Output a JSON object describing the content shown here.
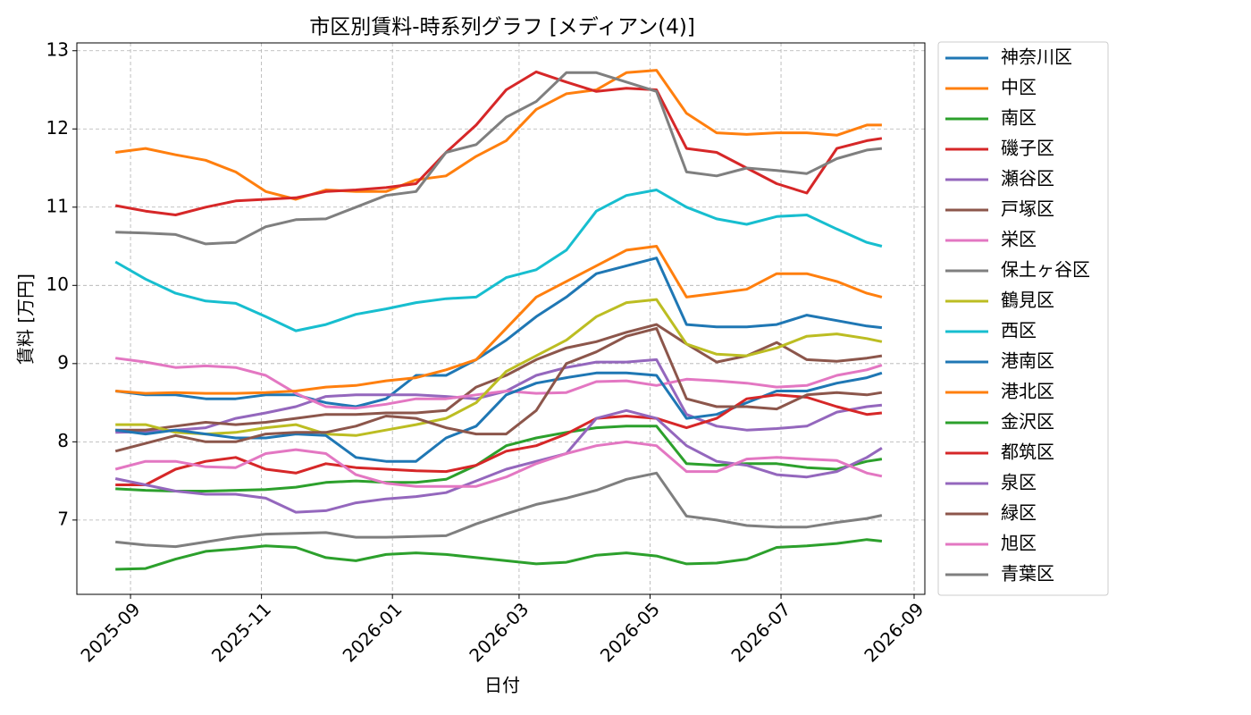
{
  "chart_data": {
    "type": "line",
    "title": "市区別賃料-時系列グラフ [メディアン(4)]",
    "x_label": "日付",
    "y_label": "賃料 [万円]",
    "x": [
      "2025-08-25",
      "2025-09-08",
      "2025-09-22",
      "2025-10-06",
      "2025-10-20",
      "2025-11-03",
      "2025-11-17",
      "2025-12-01",
      "2025-12-15",
      "2025-12-29",
      "2026-01-12",
      "2026-01-26",
      "2026-02-09",
      "2026-02-23",
      "2026-03-09",
      "2026-03-23",
      "2026-04-06",
      "2026-04-20",
      "2026-05-04",
      "2026-05-18",
      "2026-06-01",
      "2026-06-15",
      "2026-06-29",
      "2026-07-13",
      "2026-07-27",
      "2026-08-10",
      "2026-08-17"
    ],
    "xlim": [
      "2025-08-07",
      "2026-09-06"
    ],
    "xticks": [
      {
        "value": "2025-09-01",
        "label": "2025-09"
      },
      {
        "value": "2025-11-01",
        "label": "2025-11"
      },
      {
        "value": "2026-01-01",
        "label": "2026-01"
      },
      {
        "value": "2026-03-01",
        "label": "2026-03"
      },
      {
        "value": "2026-05-01",
        "label": "2026-05"
      },
      {
        "value": "2026-07-01",
        "label": "2026-07"
      },
      {
        "value": "2026-09-01",
        "label": "2026-09"
      }
    ],
    "ylim": [
      6.05,
      13.1
    ],
    "yticks": [
      7,
      8,
      9,
      10,
      11,
      12,
      13
    ],
    "grid": true,
    "legend": "outside right",
    "series": [
      {
        "name": "神奈川区",
        "color": "#1f77b4",
        "values": [
          8.65,
          8.6,
          8.6,
          8.55,
          8.55,
          8.6,
          8.6,
          8.5,
          8.45,
          8.55,
          8.85,
          8.85,
          9.05,
          9.3,
          9.6,
          9.85,
          10.15,
          10.25,
          10.35,
          9.5,
          9.47,
          9.47,
          9.5,
          9.62,
          9.55,
          9.48,
          9.46
        ]
      },
      {
        "name": "中区",
        "color": "#ff7f0e",
        "values": [
          11.7,
          11.75,
          11.67,
          11.6,
          11.45,
          11.2,
          11.1,
          11.22,
          11.2,
          11.2,
          11.35,
          11.4,
          11.65,
          11.85,
          12.25,
          12.45,
          12.5,
          12.72,
          12.75,
          12.2,
          11.95,
          11.93,
          11.95,
          11.95,
          11.92,
          12.05,
          12.05
        ]
      },
      {
        "name": "南区",
        "color": "#2ca02c",
        "values": [
          6.37,
          6.38,
          6.5,
          6.6,
          6.63,
          6.67,
          6.65,
          6.52,
          6.48,
          6.56,
          6.58,
          6.56,
          6.52,
          6.48,
          6.44,
          6.46,
          6.55,
          6.58,
          6.54,
          6.44,
          6.45,
          6.5,
          6.65,
          6.67,
          6.7,
          6.75,
          6.73
        ]
      },
      {
        "name": "磯子区",
        "color": "#d62728",
        "values": [
          11.02,
          10.95,
          10.9,
          11.0,
          11.08,
          11.1,
          11.12,
          11.2,
          11.22,
          11.25,
          11.3,
          11.7,
          12.05,
          12.5,
          12.73,
          12.6,
          12.48,
          12.52,
          12.5,
          11.75,
          11.7,
          11.5,
          11.3,
          11.18,
          11.75,
          11.85,
          11.88
        ]
      },
      {
        "name": "瀬谷区",
        "color": "#9467bd",
        "values": [
          8.12,
          8.13,
          8.15,
          8.18,
          8.3,
          8.37,
          8.45,
          8.58,
          8.6,
          8.6,
          8.6,
          8.58,
          8.55,
          8.65,
          8.85,
          8.95,
          9.02,
          9.02,
          9.05,
          8.35,
          8.2,
          8.15,
          8.17,
          8.2,
          8.38,
          8.45,
          8.47
        ]
      },
      {
        "name": "戸塚区",
        "color": "#8c564b",
        "values": [
          8.15,
          8.15,
          8.2,
          8.25,
          8.22,
          8.25,
          8.3,
          8.35,
          8.35,
          8.37,
          8.37,
          8.4,
          8.7,
          8.85,
          9.05,
          9.2,
          9.28,
          9.4,
          9.5,
          9.25,
          9.02,
          9.1,
          9.27,
          9.05,
          9.03,
          9.07,
          9.1
        ]
      },
      {
        "name": "栄区",
        "color": "#e377c2",
        "values": [
          9.07,
          9.02,
          8.95,
          8.97,
          8.95,
          8.85,
          8.62,
          8.45,
          8.43,
          8.48,
          8.55,
          8.55,
          8.6,
          8.65,
          8.62,
          8.63,
          8.77,
          8.78,
          8.72,
          8.8,
          8.78,
          8.75,
          8.7,
          8.72,
          8.85,
          8.92,
          8.98
        ]
      },
      {
        "name": "保土ヶ谷区",
        "color": "#7f7f7f",
        "values": [
          10.68,
          10.67,
          10.65,
          10.53,
          10.55,
          10.75,
          10.84,
          10.85,
          11.0,
          11.15,
          11.2,
          11.7,
          11.8,
          12.15,
          12.35,
          12.72,
          12.72,
          12.6,
          12.48,
          11.45,
          11.4,
          11.5,
          11.47,
          11.43,
          11.62,
          11.73,
          11.75
        ]
      },
      {
        "name": "鶴見区",
        "color": "#bcbd22",
        "values": [
          8.22,
          8.22,
          8.12,
          8.1,
          8.12,
          8.18,
          8.22,
          8.1,
          8.08,
          8.15,
          8.22,
          8.3,
          8.5,
          8.9,
          9.1,
          9.3,
          9.6,
          9.78,
          9.82,
          9.25,
          9.12,
          9.1,
          9.2,
          9.35,
          9.38,
          9.32,
          9.28
        ]
      },
      {
        "name": "西区",
        "color": "#17becf",
        "values": [
          10.3,
          10.08,
          9.9,
          9.8,
          9.77,
          9.6,
          9.42,
          9.5,
          9.63,
          9.7,
          9.78,
          9.83,
          9.85,
          10.1,
          10.2,
          10.45,
          10.95,
          11.15,
          11.22,
          11.0,
          10.85,
          10.78,
          10.88,
          10.9,
          10.72,
          10.55,
          10.5
        ]
      },
      {
        "name": "港南区",
        "color": "#1f77b4",
        "values": [
          8.15,
          8.1,
          8.15,
          8.1,
          8.05,
          8.05,
          8.1,
          8.08,
          7.8,
          7.75,
          7.75,
          8.05,
          8.2,
          8.6,
          8.75,
          8.82,
          8.88,
          8.88,
          8.85,
          8.3,
          8.35,
          8.5,
          8.65,
          8.65,
          8.75,
          8.82,
          8.88
        ]
      },
      {
        "name": "港北区",
        "color": "#ff7f0e",
        "values": [
          8.65,
          8.62,
          8.63,
          8.62,
          8.62,
          8.63,
          8.65,
          8.7,
          8.72,
          8.78,
          8.82,
          8.92,
          9.05,
          9.45,
          9.85,
          10.05,
          10.25,
          10.45,
          10.5,
          9.85,
          9.9,
          9.95,
          10.15,
          10.15,
          10.05,
          9.9,
          9.85
        ]
      },
      {
        "name": "金沢区",
        "color": "#2ca02c",
        "values": [
          7.4,
          7.38,
          7.37,
          7.37,
          7.38,
          7.39,
          7.42,
          7.48,
          7.5,
          7.48,
          7.48,
          7.52,
          7.7,
          7.95,
          8.05,
          8.12,
          8.18,
          8.2,
          8.2,
          7.72,
          7.7,
          7.72,
          7.72,
          7.67,
          7.65,
          7.75,
          7.78
        ]
      },
      {
        "name": "都筑区",
        "color": "#d62728",
        "values": [
          7.45,
          7.45,
          7.65,
          7.75,
          7.8,
          7.65,
          7.6,
          7.72,
          7.67,
          7.65,
          7.63,
          7.62,
          7.7,
          7.88,
          7.95,
          8.1,
          8.3,
          8.33,
          8.3,
          8.18,
          8.3,
          8.55,
          8.6,
          8.57,
          8.45,
          8.35,
          8.37
        ]
      },
      {
        "name": "泉区",
        "color": "#9467bd",
        "values": [
          7.53,
          7.45,
          7.37,
          7.33,
          7.33,
          7.28,
          7.1,
          7.12,
          7.22,
          7.27,
          7.3,
          7.35,
          7.5,
          7.65,
          7.75,
          7.85,
          8.3,
          8.4,
          8.3,
          7.95,
          7.75,
          7.7,
          7.58,
          7.55,
          7.62,
          7.8,
          7.92
        ]
      },
      {
        "name": "緑区",
        "color": "#8c564b",
        "values": [
          7.88,
          7.98,
          8.08,
          8.0,
          8.0,
          8.1,
          8.12,
          8.12,
          8.2,
          8.33,
          8.3,
          8.18,
          8.1,
          8.1,
          8.4,
          9.0,
          9.15,
          9.35,
          9.45,
          8.55,
          8.45,
          8.45,
          8.42,
          8.6,
          8.63,
          8.6,
          8.63
        ]
      },
      {
        "name": "旭区",
        "color": "#e377c2",
        "values": [
          7.65,
          7.75,
          7.75,
          7.68,
          7.67,
          7.85,
          7.9,
          7.85,
          7.58,
          7.47,
          7.43,
          7.43,
          7.43,
          7.55,
          7.72,
          7.85,
          7.95,
          8.0,
          7.95,
          7.62,
          7.62,
          7.78,
          7.8,
          7.78,
          7.76,
          7.6,
          7.56
        ]
      },
      {
        "name": "青葉区",
        "color": "#7f7f7f",
        "values": [
          6.72,
          6.68,
          6.66,
          6.72,
          6.78,
          6.82,
          6.83,
          6.84,
          6.78,
          6.78,
          6.79,
          6.8,
          6.95,
          7.08,
          7.2,
          7.28,
          7.38,
          7.52,
          7.6,
          7.05,
          7.0,
          6.93,
          6.91,
          6.91,
          6.97,
          7.02,
          7.06
        ]
      }
    ]
  }
}
